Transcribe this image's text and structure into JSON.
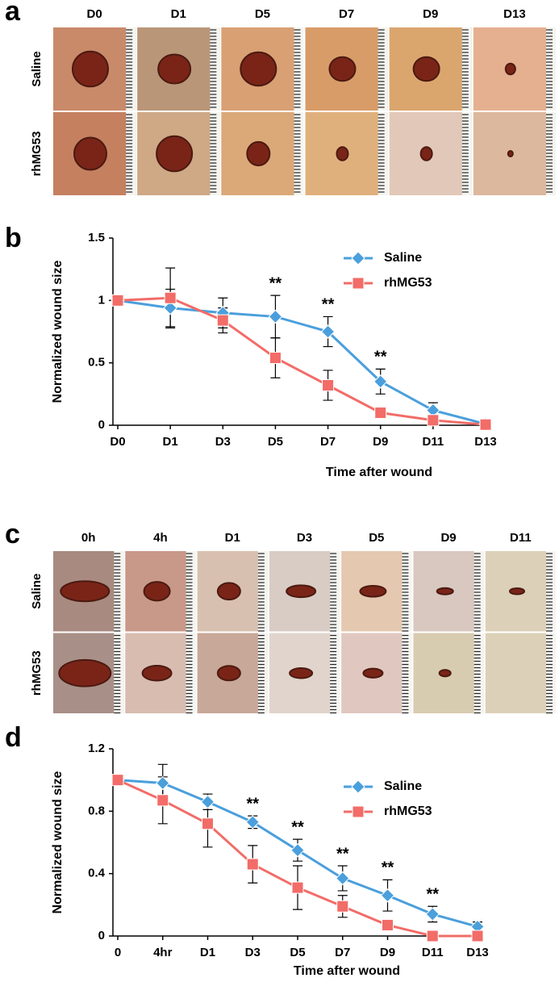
{
  "panel_labels": [
    "a",
    "b",
    "c",
    "d"
  ],
  "photo_grids": [
    {
      "columns": [
        "D0",
        "D1",
        "D5",
        "D7",
        "D9",
        "D13"
      ],
      "rows": [
        "Saline",
        "rhMG53"
      ]
    },
    {
      "columns": [
        "0h",
        "4h",
        "D1",
        "D3",
        "D5",
        "D9",
        "D11"
      ],
      "rows": [
        "Saline",
        "rhMG53"
      ]
    }
  ],
  "chart_data": [
    {
      "type": "line",
      "y_label": "Normalized wound size",
      "x_label": "Time after wound",
      "categories": [
        "D0",
        "D1",
        "D3",
        "D5",
        "D7",
        "D9",
        "D11",
        "D13"
      ],
      "ylim": [
        0,
        1.5
      ],
      "yticks": [
        0,
        0.5,
        1,
        1.5
      ],
      "series": [
        {
          "name": "Saline",
          "color": "#4a9fdc",
          "marker": "diamond",
          "values": [
            1,
            0.94,
            0.9,
            0.87,
            0.75,
            0.35,
            0.12,
            0.01
          ],
          "errors": [
            0,
            0.15,
            0.12,
            0.17,
            0.12,
            0.1,
            0.06,
            0.01
          ]
        },
        {
          "name": "rhMG53",
          "color": "#f26c68",
          "marker": "square",
          "values": [
            1,
            1.02,
            0.84,
            0.54,
            0.32,
            0.1,
            0.04,
            0.005
          ],
          "errors": [
            0,
            0.24,
            0.1,
            0.16,
            0.12,
            0.02,
            0.02,
            0
          ]
        }
      ],
      "annotations": [
        {
          "text": "**",
          "x": "D5"
        },
        {
          "text": "**",
          "x": "D7"
        },
        {
          "text": "**",
          "x": "D9"
        }
      ]
    },
    {
      "type": "line",
      "y_label": "Normalized wound size",
      "x_label": "Time after wound",
      "categories": [
        "0",
        "4hr",
        "D1",
        "D3",
        "D5",
        "D7",
        "D9",
        "D11",
        "D13"
      ],
      "ylim": [
        0,
        1.2
      ],
      "yticks": [
        0,
        0.4,
        0.8,
        1.2
      ],
      "series": [
        {
          "name": "Saline",
          "color": "#4a9fdc",
          "marker": "diamond",
          "values": [
            1,
            0.98,
            0.86,
            0.73,
            0.55,
            0.37,
            0.26,
            0.14,
            0.06
          ],
          "errors": [
            0,
            0.12,
            0.05,
            0.04,
            0.07,
            0.08,
            0.1,
            0.05,
            0.03
          ]
        },
        {
          "name": "rhMG53",
          "color": "#f26c68",
          "marker": "square",
          "values": [
            1,
            0.87,
            0.72,
            0.46,
            0.31,
            0.19,
            0.07,
            0,
            0
          ],
          "errors": [
            0,
            0.15,
            0.15,
            0.12,
            0.14,
            0.07,
            0.03,
            0,
            0
          ]
        }
      ],
      "annotations": [
        {
          "text": "**",
          "x": "D3"
        },
        {
          "text": "**",
          "x": "D5"
        },
        {
          "text": "**",
          "x": "D7"
        },
        {
          "text": "**",
          "x": "D9"
        },
        {
          "text": "**",
          "x": "D11"
        }
      ]
    }
  ]
}
